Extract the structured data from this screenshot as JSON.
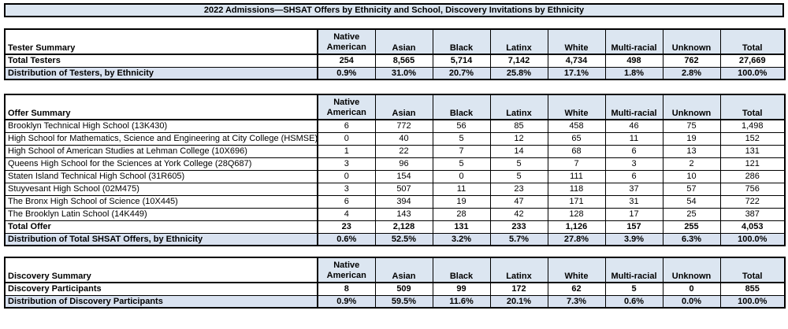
{
  "title": "2022 Admissions—SHSAT Offers by Ethnicity and School, Discovery Invitations by Ethnicity",
  "columns": [
    "Native American",
    "Asian",
    "Black",
    "Latinx",
    "White",
    "Multi-racial",
    "Unknown",
    "Total"
  ],
  "colors": {
    "header_bg": "#DCE6F1",
    "highlight_bg": "#D9E2F0",
    "title_bg": "#DCE6F1",
    "border": "#000000"
  },
  "tables": [
    {
      "label": "Tester Summary",
      "rows": [
        {
          "label": "Total Testers",
          "bold": true,
          "highlight": false,
          "values": [
            "254",
            "8,565",
            "5,714",
            "7,142",
            "4,734",
            "498",
            "762",
            "27,669"
          ]
        },
        {
          "label": "Distribution of Testers, by Ethnicity",
          "bold": true,
          "highlight": true,
          "values": [
            "0.9%",
            "31.0%",
            "20.7%",
            "25.8%",
            "17.1%",
            "1.8%",
            "2.8%",
            "100.0%"
          ]
        }
      ]
    },
    {
      "label": "Offer Summary",
      "rows": [
        {
          "label": "Brooklyn Technical High School (13K430)",
          "bold": false,
          "highlight": false,
          "values": [
            "6",
            "772",
            "56",
            "85",
            "458",
            "46",
            "75",
            "1,498"
          ]
        },
        {
          "label": "High School for Mathematics, Science and Engineering at City College (HSMSE)",
          "bold": false,
          "highlight": false,
          "values": [
            "0",
            "40",
            "5",
            "12",
            "65",
            "11",
            "19",
            "152"
          ]
        },
        {
          "label": "High School of American Studies at Lehman College (10X696)",
          "bold": false,
          "highlight": false,
          "values": [
            "1",
            "22",
            "7",
            "14",
            "68",
            "6",
            "13",
            "131"
          ]
        },
        {
          "label": "Queens High School for the Sciences at York College (28Q687)",
          "bold": false,
          "highlight": false,
          "values": [
            "3",
            "96",
            "5",
            "5",
            "7",
            "3",
            "2",
            "121"
          ]
        },
        {
          "label": "Staten Island Technical High School (31R605)",
          "bold": false,
          "highlight": false,
          "values": [
            "0",
            "154",
            "0",
            "5",
            "111",
            "6",
            "10",
            "286"
          ]
        },
        {
          "label": "Stuyvesant High School (02M475)",
          "bold": false,
          "highlight": false,
          "values": [
            "3",
            "507",
            "11",
            "23",
            "118",
            "37",
            "57",
            "756"
          ]
        },
        {
          "label": "The Bronx High School of Science (10X445)",
          "bold": false,
          "highlight": false,
          "values": [
            "6",
            "394",
            "19",
            "47",
            "171",
            "31",
            "54",
            "722"
          ]
        },
        {
          "label": "The Brooklyn Latin School (14K449)",
          "bold": false,
          "highlight": false,
          "values": [
            "4",
            "143",
            "28",
            "42",
            "128",
            "17",
            "25",
            "387"
          ]
        },
        {
          "label": "Total Offer",
          "bold": true,
          "highlight": false,
          "values": [
            "23",
            "2,128",
            "131",
            "233",
            "1,126",
            "157",
            "255",
            "4,053"
          ]
        },
        {
          "label": "Distribution of Total SHSAT Offers, by Ethnicity",
          "bold": true,
          "highlight": true,
          "values": [
            "0.6%",
            "52.5%",
            "3.2%",
            "5.7%",
            "27.8%",
            "3.9%",
            "6.3%",
            "100.0%"
          ]
        }
      ]
    },
    {
      "label": "Discovery Summary",
      "rows": [
        {
          "label": "Discovery Participants",
          "bold": true,
          "highlight": false,
          "values": [
            "8",
            "509",
            "99",
            "172",
            "62",
            "5",
            "0",
            "855"
          ]
        },
        {
          "label": "Distribution of Discovery Participants",
          "bold": true,
          "highlight": true,
          "values": [
            "0.9%",
            "59.5%",
            "11.6%",
            "20.1%",
            "7.3%",
            "0.6%",
            "0.0%",
            "100.0%"
          ]
        }
      ]
    }
  ]
}
